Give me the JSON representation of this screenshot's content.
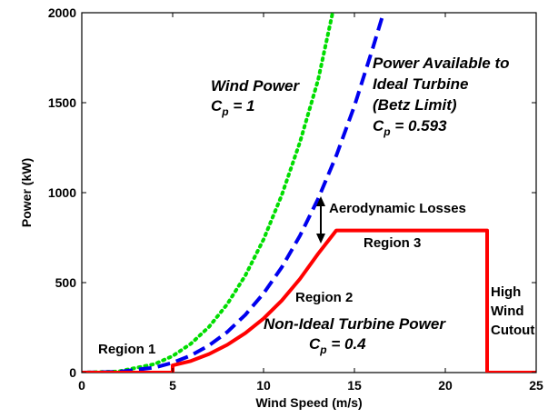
{
  "chart_data": {
    "type": "line",
    "xlabel": "Wind Speed (m/s)",
    "ylabel": "Power (kW)",
    "xlim": [
      0,
      25
    ],
    "ylim": [
      0,
      2000
    ],
    "x_ticks": [
      "0",
      "5",
      "10",
      "15",
      "20",
      "25"
    ],
    "y_ticks": [
      "0",
      "500",
      "1000",
      "1500",
      "2000"
    ],
    "grid": false,
    "legend": "none",
    "series": [
      {
        "role": "wind_power",
        "color": "#00dd00",
        "style": "dotted",
        "x": [
          0,
          2,
          4,
          5,
          6,
          7,
          8,
          9,
          10,
          11,
          12,
          13,
          13.8
        ],
        "y": [
          0,
          6,
          47,
          92,
          160,
          254,
          380,
          540,
          740,
          986,
          1280,
          1626,
          2000
        ]
      },
      {
        "role": "betz_limit",
        "color": "#0000ee",
        "style": "dashed",
        "x": [
          0,
          2,
          4,
          5,
          6,
          7,
          8,
          9,
          10,
          11,
          12,
          13,
          14,
          15,
          16,
          16.6
        ],
        "y": [
          0,
          4,
          28,
          55,
          95,
          151,
          225,
          321,
          440,
          585,
          760,
          965,
          1205,
          1482,
          1800,
          2000
        ]
      },
      {
        "role": "turbine_power",
        "color": "#ff0000",
        "style": "solid",
        "x": [
          0,
          5,
          5,
          6,
          7,
          8,
          9,
          10,
          11,
          12,
          13,
          14,
          22.3,
          22.3,
          25
        ],
        "y": [
          0,
          0,
          40,
          64,
          103,
          154,
          219,
          300,
          400,
          520,
          660,
          790,
          790,
          0,
          0
        ]
      }
    ],
    "annotations": {
      "wind_power_title": "Wind Power",
      "wind_power_cp": "C",
      "wind_power_cp_sub": "p",
      "wind_power_cp_val": " = 1",
      "betz_line1": "Power Available to",
      "betz_line2": "Ideal Turbine",
      "betz_line3": "(Betz Limit)",
      "betz_cp": "C",
      "betz_cp_sub": "p",
      "betz_cp_val": " = 0.593",
      "aero_losses": "Aerodynamic Losses",
      "region3": "Region 3",
      "region2": "Region 2",
      "region1": "Region 1",
      "nonideal_title": "Non-Ideal Turbine Power",
      "nonideal_cp": "C",
      "nonideal_cp_sub": "p",
      "nonideal_cp_val": " = 0.4",
      "high1": "High",
      "high2": "Wind",
      "high3": "Cutout"
    }
  }
}
